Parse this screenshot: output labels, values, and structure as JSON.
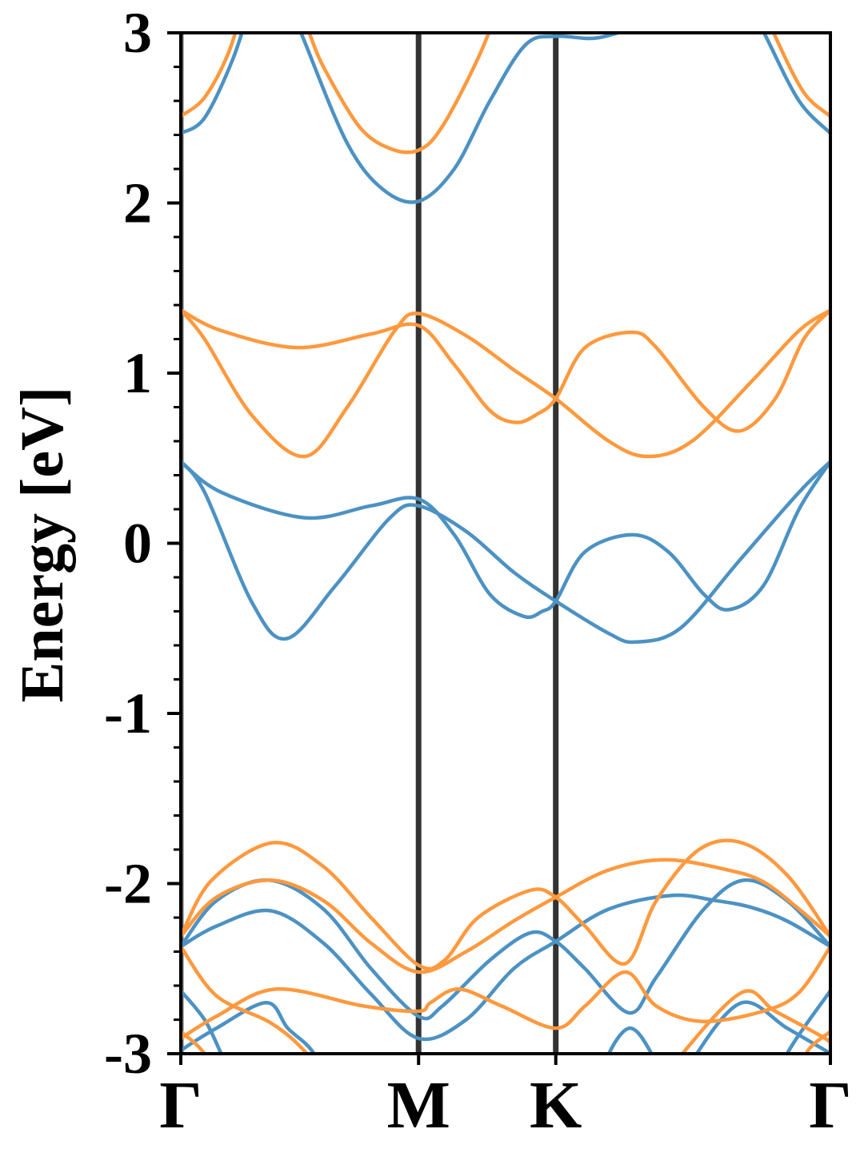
{
  "chart_data": {
    "type": "line",
    "title": "",
    "xlabel": "",
    "ylabel": "Energy [eV]",
    "ylim": [
      -3,
      3
    ],
    "xlim": [
      0,
      2.732
    ],
    "grid": false,
    "legend": "none",
    "colors": {
      "spin_up": "#4c92c3",
      "spin_down": "#ff993e",
      "kpath_line": "#333333"
    },
    "yticks": [
      {
        "value": 3,
        "label": "3"
      },
      {
        "value": 2,
        "label": "2"
      },
      {
        "value": 1,
        "label": "1"
      },
      {
        "value": 0,
        "label": "0"
      },
      {
        "value": -1,
        "label": "-1"
      },
      {
        "value": -2,
        "label": "-2"
      },
      {
        "value": -3,
        "label": "-3"
      }
    ],
    "yminor_step": 0.2,
    "xticks": [
      {
        "value": 0,
        "label": "Γ"
      },
      {
        "value": 1,
        "label": "M"
      },
      {
        "value": 1.577,
        "label": "K"
      },
      {
        "value": 2.732,
        "label": "Γ"
      }
    ],
    "series": [
      {
        "name": "blue",
        "color": "#4c92c3",
        "bands": [
          [
            [
              0,
              2.41
            ],
            [
              0.1,
              2.5
            ],
            [
              0.22,
              2.85
            ],
            [
              0.3,
              3.2
            ]
          ],
          [
            [
              0.45,
              3.2
            ],
            [
              0.52,
              2.95
            ],
            [
              0.7,
              2.35
            ],
            [
              0.85,
              2.08
            ],
            [
              1,
              2.01
            ],
            [
              1.15,
              2.2
            ],
            [
              1.3,
              2.6
            ],
            [
              1.45,
              2.93
            ],
            [
              1.577,
              2.98
            ],
            [
              1.75,
              2.97
            ],
            [
              1.95,
              3.05
            ]
          ],
          [
            [
              2.38,
              3.2
            ],
            [
              2.46,
              2.98
            ],
            [
              2.6,
              2.6
            ],
            [
              2.732,
              2.41
            ]
          ],
          [
            [
              0,
              0.48
            ],
            [
              0.17,
              0.3
            ],
            [
              0.52,
              0.15
            ],
            [
              0.8,
              0.22
            ],
            [
              1,
              0.26
            ],
            [
              1.15,
              0.05
            ],
            [
              1.3,
              -0.3
            ],
            [
              1.443,
              -0.43
            ],
            [
              1.52,
              -0.4
            ],
            [
              1.577,
              -0.34
            ],
            [
              1.7,
              -0.05
            ],
            [
              1.9,
              0.05
            ],
            [
              2.05,
              -0.05
            ],
            [
              2.2,
              -0.3
            ],
            [
              2.305,
              -0.39
            ],
            [
              2.45,
              -0.25
            ],
            [
              2.6,
              0.2
            ],
            [
              2.732,
              0.48
            ]
          ],
          [
            [
              0,
              0.48
            ],
            [
              0.1,
              0.3
            ],
            [
              0.3,
              -0.35
            ],
            [
              0.446,
              -0.56
            ],
            [
              0.65,
              -0.25
            ],
            [
              0.88,
              0.15
            ],
            [
              1,
              0.22
            ],
            [
              1.2,
              0.07
            ],
            [
              1.4,
              -0.17
            ],
            [
              1.577,
              -0.34
            ],
            [
              1.8,
              -0.53
            ],
            [
              1.913,
              -0.58
            ],
            [
              2.1,
              -0.5
            ],
            [
              2.35,
              -0.1
            ],
            [
              2.6,
              0.3
            ],
            [
              2.732,
              0.48
            ]
          ],
          [
            [
              0,
              -2.37
            ],
            [
              0.15,
              -2.1
            ],
            [
              0.37,
              -1.98
            ],
            [
              0.6,
              -2.15
            ],
            [
              0.8,
              -2.5
            ],
            [
              1,
              -2.78
            ],
            [
              1.1,
              -2.72
            ],
            [
              1.3,
              -2.45
            ],
            [
              1.47,
              -2.29
            ],
            [
              1.577,
              -2.34
            ],
            [
              1.7,
              -2.5
            ],
            [
              1.886,
              -2.76
            ],
            [
              2.0,
              -2.55
            ],
            [
              2.2,
              -2.15
            ],
            [
              2.37,
              -1.98
            ],
            [
              2.55,
              -2.1
            ],
            [
              2.732,
              -2.37
            ]
          ],
          [
            [
              0,
              -2.37
            ],
            [
              0.15,
              -2.25
            ],
            [
              0.378,
              -2.16
            ],
            [
              0.6,
              -2.35
            ],
            [
              0.8,
              -2.65
            ],
            [
              1,
              -2.91
            ],
            [
              1.2,
              -2.8
            ],
            [
              1.4,
              -2.5
            ],
            [
              1.577,
              -2.34
            ],
            [
              1.8,
              -2.15
            ],
            [
              2.064,
              -2.07
            ],
            [
              2.25,
              -2.1
            ],
            [
              2.4,
              -2.14
            ],
            [
              2.55,
              -2.22
            ],
            [
              2.732,
              -2.37
            ]
          ],
          [
            [
              0,
              -2.63
            ],
            [
              0.1,
              -2.8
            ],
            [
              0.17,
              -3.0
            ],
            [
              0.25,
              -3.25
            ]
          ],
          [
            [
              0,
              -2.98
            ],
            [
              0.15,
              -2.85
            ],
            [
              0.36,
              -2.7
            ],
            [
              0.45,
              -2.85
            ],
            [
              0.56,
              -3.0
            ],
            [
              0.62,
              -3.25
            ]
          ],
          [
            [
              1.75,
              -3.25
            ],
            [
              1.8,
              -3.0
            ],
            [
              1.89,
              -2.85
            ],
            [
              1.98,
              -3.0
            ],
            [
              2.05,
              -3.25
            ]
          ],
          [
            [
              2.1,
              -3.25
            ],
            [
              2.17,
              -3.0
            ],
            [
              2.36,
              -2.7
            ],
            [
              2.55,
              -2.85
            ],
            [
              2.71,
              -2.98
            ],
            [
              2.732,
              -3.0
            ]
          ],
          [
            [
              2.5,
              -3.25
            ],
            [
              2.55,
              -3.0
            ],
            [
              2.732,
              -2.63
            ]
          ]
        ]
      },
      {
        "name": "orange",
        "color": "#ff993e",
        "bands": [
          [
            [
              0,
              2.51
            ],
            [
              0.1,
              2.62
            ],
            [
              0.2,
              2.88
            ],
            [
              0.27,
              3.2
            ]
          ],
          [
            [
              0.48,
              3.2
            ],
            [
              0.54,
              3.0
            ],
            [
              0.6,
              2.8
            ],
            [
              0.75,
              2.45
            ],
            [
              0.88,
              2.32
            ],
            [
              1,
              2.31
            ],
            [
              1.1,
              2.45
            ],
            [
              1.25,
              2.85
            ],
            [
              1.35,
              3.2
            ]
          ],
          [
            [
              2.44,
              3.2
            ],
            [
              2.5,
              2.98
            ],
            [
              2.62,
              2.65
            ],
            [
              2.732,
              2.51
            ]
          ],
          [
            [
              0,
              1.37
            ],
            [
              0.17,
              1.25
            ],
            [
              0.49,
              1.15
            ],
            [
              0.8,
              1.23
            ],
            [
              1,
              1.28
            ],
            [
              1.15,
              1.05
            ],
            [
              1.3,
              0.78
            ],
            [
              1.41,
              0.71
            ],
            [
              1.5,
              0.76
            ],
            [
              1.577,
              0.85
            ],
            [
              1.7,
              1.15
            ],
            [
              1.896,
              1.24
            ],
            [
              2.0,
              1.15
            ],
            [
              2.2,
              0.8
            ],
            [
              2.35,
              0.66
            ],
            [
              2.5,
              0.85
            ],
            [
              2.62,
              1.2
            ],
            [
              2.732,
              1.37
            ]
          ],
          [
            [
              0,
              1.37
            ],
            [
              0.1,
              1.2
            ],
            [
              0.3,
              0.75
            ],
            [
              0.52,
              0.51
            ],
            [
              0.7,
              0.8
            ],
            [
              0.9,
              1.25
            ],
            [
              1,
              1.35
            ],
            [
              1.2,
              1.22
            ],
            [
              1.4,
              1.02
            ],
            [
              1.577,
              0.85
            ],
            [
              1.8,
              0.6
            ],
            [
              1.963,
              0.51
            ],
            [
              2.15,
              0.6
            ],
            [
              2.4,
              0.95
            ],
            [
              2.6,
              1.25
            ],
            [
              2.732,
              1.37
            ]
          ],
          [
            [
              0,
              -2.31
            ],
            [
              0.13,
              -1.98
            ],
            [
              0.386,
              -1.76
            ],
            [
              0.6,
              -1.9
            ],
            [
              0.8,
              -2.2
            ],
            [
              1,
              -2.48
            ],
            [
              1.11,
              -2.45
            ],
            [
              1.25,
              -2.2
            ],
            [
              1.47,
              -2.04
            ],
            [
              1.577,
              -2.08
            ],
            [
              1.7,
              -2.25
            ],
            [
              1.87,
              -2.47
            ],
            [
              2.0,
              -2.1
            ],
            [
              2.18,
              -1.8
            ],
            [
              2.359,
              -1.76
            ],
            [
              2.55,
              -1.95
            ],
            [
              2.732,
              -2.31
            ]
          ],
          [
            [
              0,
              -2.31
            ],
            [
              0.15,
              -2.08
            ],
            [
              0.378,
              -1.98
            ],
            [
              0.6,
              -2.1
            ],
            [
              0.8,
              -2.35
            ],
            [
              1,
              -2.52
            ],
            [
              1.2,
              -2.4
            ],
            [
              1.4,
              -2.22
            ],
            [
              1.577,
              -2.08
            ],
            [
              1.8,
              -1.92
            ],
            [
              2.04,
              -1.86
            ],
            [
              2.3,
              -1.92
            ],
            [
              2.45,
              -1.99
            ],
            [
              2.6,
              -2.15
            ],
            [
              2.732,
              -2.31
            ]
          ],
          [
            [
              0,
              -2.91
            ],
            [
              0.15,
              -2.78
            ],
            [
              0.4,
              -2.62
            ],
            [
              0.77,
              -2.72
            ],
            [
              1,
              -2.75
            ],
            [
              1.05,
              -2.7
            ],
            [
              1.17,
              -2.62
            ],
            [
              1.35,
              -2.72
            ],
            [
              1.577,
              -2.85
            ],
            [
              1.7,
              -2.72
            ],
            [
              1.87,
              -2.52
            ],
            [
              2.0,
              -2.72
            ],
            [
              2.19,
              -2.81
            ],
            [
              2.45,
              -2.75
            ],
            [
              2.6,
              -2.64
            ],
            [
              2.732,
              -2.37
            ]
          ],
          [
            [
              0,
              -2.37
            ],
            [
              0.15,
              -2.66
            ],
            [
              0.38,
              -2.82
            ],
            [
              0.53,
              -3.0
            ],
            [
              0.65,
              -3.25
            ]
          ],
          [
            [
              0,
              -2.87
            ],
            [
              0.1,
              -3.0
            ],
            [
              0.2,
              -3.25
            ]
          ],
          [
            [
              2.0,
              -3.25
            ],
            [
              2.11,
              -3.0
            ],
            [
              2.36,
              -2.64
            ],
            [
              2.5,
              -2.75
            ],
            [
              2.71,
              -2.91
            ],
            [
              2.732,
              -2.95
            ]
          ],
          [
            [
              2.6,
              -3.25
            ],
            [
              2.63,
              -3.0
            ],
            [
              2.732,
              -2.87
            ]
          ]
        ]
      }
    ]
  }
}
